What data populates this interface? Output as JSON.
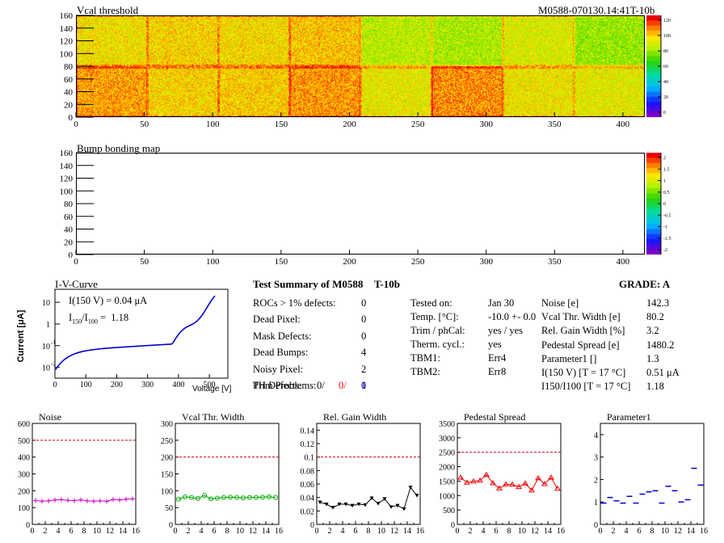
{
  "maps": {
    "threshold": {
      "title": "Vcal threshold",
      "module_id": "M0588-070130.14:41T-10b",
      "xlim": [
        0,
        416
      ],
      "ylim": [
        0,
        160
      ],
      "x_ticks": [
        "0",
        "50",
        "100",
        "150",
        "200",
        "250",
        "300",
        "350",
        "400"
      ],
      "y_ticks": [
        "0",
        "20",
        "40",
        "60",
        "80",
        "100",
        "120",
        "140",
        "160"
      ],
      "palette_ticks": [
        "120",
        "100",
        "80",
        "60",
        "40",
        "20",
        "0"
      ]
    },
    "bump": {
      "title": "Bump bonding map",
      "xlim": [
        0,
        416
      ],
      "ylim": [
        0,
        160
      ],
      "x_ticks": [
        "0",
        "50",
        "100",
        "150",
        "200",
        "250",
        "300",
        "350",
        "400"
      ],
      "y_ticks": [
        "0",
        "20",
        "40",
        "60",
        "80",
        "100",
        "120",
        "140",
        "160"
      ],
      "palette_ticks": [
        "2",
        "1.5",
        "1",
        "0.5",
        "0",
        "-0.5",
        "-1",
        "-1.5",
        "-2"
      ]
    }
  },
  "iv": {
    "title": "I-V-Curve",
    "ylabel": "Current [μA]",
    "xlabel": "Voltage [V]",
    "i150": "I(150 V) = 0.04 μA",
    "ratio_label": "I150/I100",
    "ratio_value": "1.18",
    "x_ticks": [
      "0",
      "100",
      "200",
      "300",
      "400",
      "500"
    ],
    "y_ticks": [
      "10",
      "1",
      "10-1",
      "10-2"
    ]
  },
  "summary": {
    "title": "Test Summary of M0588",
    "variant": "T-10b",
    "grade": "GRADE:  A",
    "left": [
      {
        "label": "ROCs > 1% defects:",
        "value": "0"
      },
      {
        "label": "Dead Pixel:",
        "value": "0"
      },
      {
        "label": "Mask Defects:",
        "value": "0"
      },
      {
        "label": "Dead Bumps:",
        "value": "4"
      },
      {
        "label": "Noisy Pixel:",
        "value": "2"
      },
      {
        "label": "Trim Problems:",
        "value": "1"
      }
    ],
    "ph_label": "PH Defects:",
    "ph_values": [
      "0/",
      "0/",
      "0"
    ],
    "ph_colors": [
      "#000000",
      "#ff0000",
      "#0000ff"
    ],
    "middle": [
      {
        "label": "Tested on:",
        "value": "Jan 30"
      },
      {
        "label": "Temp. [°C]:",
        "value": "-10.0 +- 0.0"
      },
      {
        "label": "Trim / phCal:",
        "value": "yes / yes"
      },
      {
        "label": "Therm. cycl.:",
        "value": "yes"
      },
      {
        "label": "TBM1:",
        "value": "Err4"
      },
      {
        "label": "TBM2:",
        "value": "Err8"
      }
    ],
    "right": [
      {
        "label": "Noise [e]",
        "value": "142.3"
      },
      {
        "label": "Vcal Thr. Width [e]",
        "value": "80.2"
      },
      {
        "label": "Rel. Gain Width [%]",
        "value": "3.2"
      },
      {
        "label": "Pedestal Spread [e]",
        "value": "1480.2"
      },
      {
        "label": "Parameter1 []",
        "value": "1.3"
      },
      {
        "label": "I(150 V)  [T = 17 °C]",
        "value": "0.51 μA"
      },
      {
        "label": "I150/I100   [T = 17 °C]",
        "value": "1.18"
      }
    ]
  },
  "chart_data": [
    {
      "type": "line",
      "title": "Noise",
      "color": "#cc00cc",
      "marker": "plus",
      "x": [
        0,
        1,
        2,
        3,
        4,
        5,
        6,
        7,
        8,
        9,
        10,
        11,
        12,
        13,
        14,
        15
      ],
      "values": [
        142,
        138,
        140,
        145,
        147,
        143,
        141,
        146,
        140,
        138,
        140,
        137,
        148,
        145,
        150,
        152
      ],
      "ylim": [
        0,
        600
      ],
      "y_ticks": [
        0,
        100,
        200,
        300,
        400,
        500,
        600
      ],
      "x_ticks": [
        0,
        2,
        4,
        6,
        8,
        10,
        12,
        14,
        16
      ],
      "threshold": 500
    },
    {
      "type": "line",
      "title": "Vcal Thr. Width",
      "color": "#00aa00",
      "marker": "circle",
      "x": [
        0,
        1,
        2,
        3,
        4,
        5,
        6,
        7,
        8,
        9,
        10,
        11,
        12,
        13,
        14,
        15
      ],
      "values": [
        75,
        82,
        80,
        77,
        86,
        76,
        78,
        80,
        81,
        80,
        79,
        80,
        80,
        81,
        82,
        80
      ],
      "ylim": [
        0,
        300
      ],
      "y_ticks": [
        0,
        50,
        100,
        150,
        200,
        250,
        300
      ],
      "x_ticks": [
        0,
        2,
        4,
        6,
        8,
        10,
        12,
        14,
        16
      ],
      "threshold": 200
    },
    {
      "type": "line",
      "title": "Rel. Gain Width",
      "color": "#000000",
      "marker": "triangle-down",
      "x": [
        0,
        1,
        2,
        3,
        4,
        5,
        6,
        7,
        8,
        9,
        10,
        11,
        12,
        13,
        14,
        15
      ],
      "values": [
        0.033,
        0.03,
        0.025,
        0.03,
        0.03,
        0.028,
        0.03,
        0.029,
        0.039,
        0.031,
        0.038,
        0.026,
        0.028,
        0.023,
        0.055,
        0.043
      ],
      "ylim": [
        0,
        0.15
      ],
      "y_ticks": [
        0,
        0.02,
        0.04,
        0.06,
        0.08,
        0.1,
        0.12,
        0.14
      ],
      "x_ticks": [
        0,
        2,
        4,
        6,
        8,
        10,
        12,
        14,
        16
      ],
      "threshold": 0.1
    },
    {
      "type": "line",
      "title": "Pedestal Spread",
      "color": "#ee0000",
      "marker": "triangle-up",
      "x": [
        0,
        1,
        2,
        3,
        4,
        5,
        6,
        7,
        8,
        9,
        10,
        11,
        12,
        13,
        14,
        15
      ],
      "values": [
        1620,
        1450,
        1490,
        1520,
        1720,
        1430,
        1250,
        1390,
        1380,
        1300,
        1420,
        1180,
        1600,
        1400,
        1620,
        1240
      ],
      "ylim": [
        0,
        3500
      ],
      "y_ticks": [
        0,
        500,
        1000,
        1500,
        2000,
        2500,
        3000,
        3500
      ],
      "x_ticks": [
        0,
        2,
        4,
        6,
        8,
        10,
        12,
        14,
        16
      ],
      "threshold": 2500
    },
    {
      "type": "scatter",
      "title": "Parameter1",
      "color": "#0000cc",
      "marker": "hbar",
      "x": [
        0,
        1,
        2,
        3,
        4,
        5,
        6,
        7,
        8,
        9,
        10,
        11,
        12,
        13,
        14,
        15
      ],
      "values": [
        0.95,
        1.2,
        1.05,
        0.95,
        1.25,
        0.95,
        1.35,
        1.45,
        1.5,
        0.95,
        1.7,
        1.5,
        1.0,
        1.1,
        2.5,
        1.75
      ],
      "ylim": [
        0,
        4.5
      ],
      "y_ticks": [
        0,
        1,
        2,
        3,
        4
      ],
      "x_ticks": [
        0,
        2,
        4,
        6,
        8,
        10,
        12,
        14,
        16
      ],
      "threshold": null
    }
  ]
}
